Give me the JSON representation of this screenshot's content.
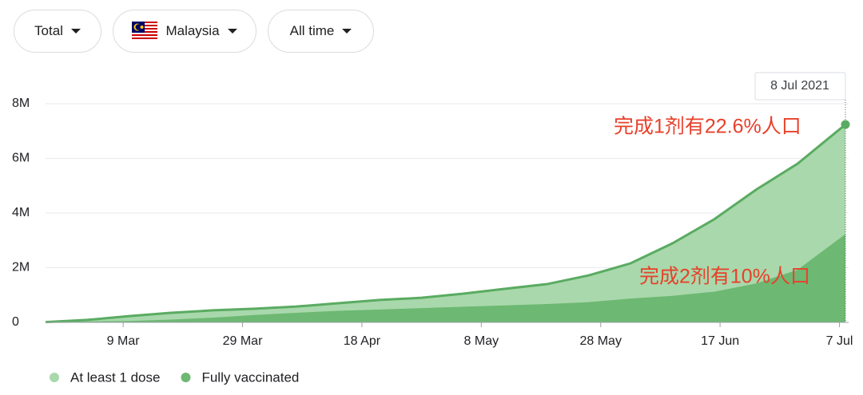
{
  "filters": [
    "Total",
    "Malaysia",
    "All time"
  ],
  "chart_data": {
    "type": "area",
    "tooltip": "8 Jul 2021",
    "annotations": [
      "完成1剂有22.6%人口",
      "完成2剂有10%人口"
    ],
    "x": [
      "2021-02-24",
      "2021-03-03",
      "2021-03-10",
      "2021-03-17",
      "2021-03-24",
      "2021-03-31",
      "2021-04-07",
      "2021-04-14",
      "2021-04-21",
      "2021-04-28",
      "2021-05-05",
      "2021-05-12",
      "2021-05-19",
      "2021-05-26",
      "2021-06-02",
      "2021-06-09",
      "2021-06-16",
      "2021-06-23",
      "2021-06-30",
      "2021-07-08"
    ],
    "xlim": [
      "2021-02-24",
      "2021-07-08"
    ],
    "xticks": [
      {
        "value": "2021-03-09",
        "label": "9 Mar"
      },
      {
        "value": "2021-03-29",
        "label": "29 Mar"
      },
      {
        "value": "2021-04-18",
        "label": "18 Apr"
      },
      {
        "value": "2021-05-08",
        "label": "8 May"
      },
      {
        "value": "2021-05-28",
        "label": "28 May"
      },
      {
        "value": "2021-06-17",
        "label": "17 Jun"
      },
      {
        "value": "2021-07-07",
        "label": "7 Jul"
      }
    ],
    "ylim": [
      0,
      8000000
    ],
    "yticks": [
      0,
      {
        "value": 2000000,
        "label": "2M"
      },
      {
        "value": 4000000,
        "label": "4M"
      },
      {
        "value": 6000000,
        "label": "6M"
      },
      {
        "value": 8000000,
        "label": "8M"
      }
    ],
    "grid": true,
    "series": [
      {
        "name": "At least 1 dose",
        "color": "#a8d8ab",
        "line_color": "#5aab61",
        "values": [
          10000,
          90000,
          230000,
          350000,
          440000,
          500000,
          580000,
          700000,
          820000,
          900000,
          1050000,
          1230000,
          1400000,
          1720000,
          2160000,
          2890000,
          3770000,
          4850000,
          5810000,
          7240000
        ]
      },
      {
        "name": "Fully vaccinated",
        "color": "#6db872",
        "line_color": "#6db872",
        "values": [
          0,
          10000,
          30000,
          80000,
          150000,
          250000,
          330000,
          400000,
          450000,
          500000,
          550000,
          600000,
          650000,
          720000,
          850000,
          950000,
          1100000,
          1400000,
          1900000,
          3200000
        ]
      }
    ]
  }
}
